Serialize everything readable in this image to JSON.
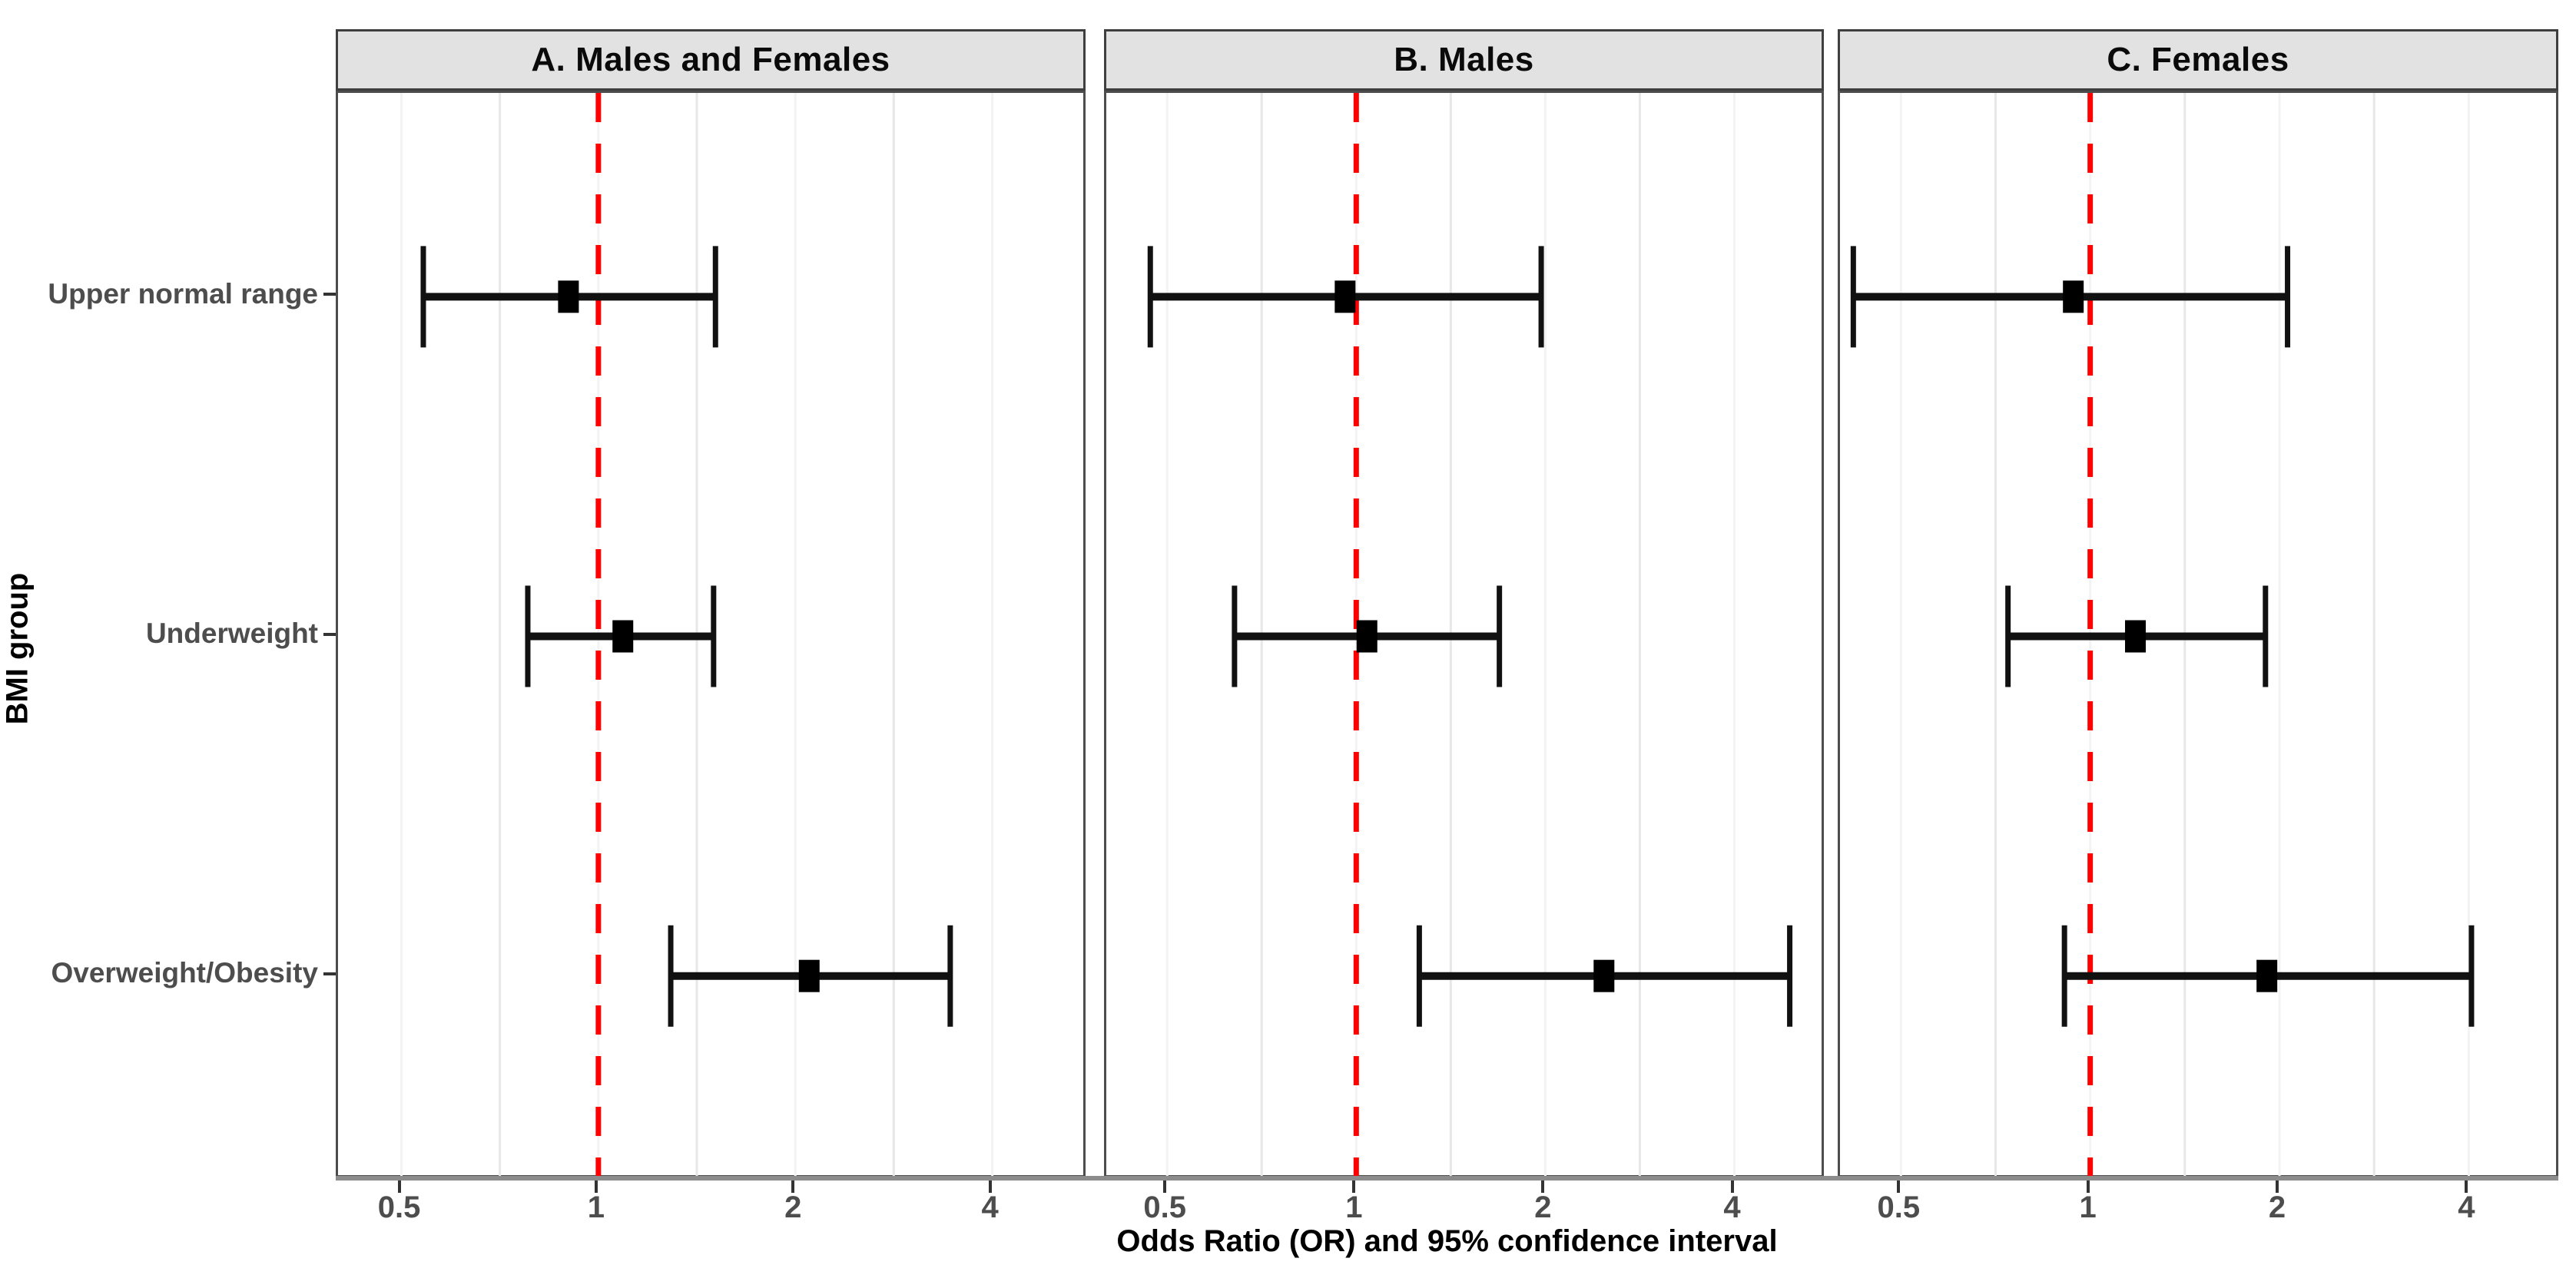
{
  "chart_data": {
    "type": "scatter",
    "variant": "forest-plot",
    "title": "",
    "xlabel": "Odds Ratio (OR) and 95% confidence interval",
    "ylabel": "BMI group",
    "x_scale": "log2",
    "x_ticks": [
      0.5,
      1,
      2,
      4
    ],
    "x_tick_labels": [
      "0.5",
      "1",
      "2",
      "4"
    ],
    "x_minor_gridlines": [
      0.707,
      1.414,
      2.828
    ],
    "xlim": [
      0.4,
      5.6
    ],
    "reference_line_x": 1,
    "grid": "on",
    "legend": "none",
    "categories": [
      "Upper normal range",
      "Underweight",
      "Overweight/Obesity"
    ],
    "panels": [
      {
        "key": "A",
        "title": "A. Males and Females",
        "points": [
          {
            "group": "Upper normal range",
            "or": 0.9,
            "ci_low": 0.54,
            "ci_high": 1.51
          },
          {
            "group": "Underweight",
            "or": 1.09,
            "ci_low": 0.78,
            "ci_high": 1.5
          },
          {
            "group": "Overweight/Obesity",
            "or": 2.1,
            "ci_low": 1.29,
            "ci_high": 3.45
          }
        ]
      },
      {
        "key": "B",
        "title": "B. Males",
        "points": [
          {
            "group": "Upper normal range",
            "or": 0.96,
            "ci_low": 0.47,
            "ci_high": 1.97
          },
          {
            "group": "Underweight",
            "or": 1.04,
            "ci_low": 0.64,
            "ci_high": 1.69
          },
          {
            "group": "Overweight/Obesity",
            "or": 2.48,
            "ci_low": 1.26,
            "ci_high": 4.9
          }
        ]
      },
      {
        "key": "C",
        "title": "C. Females",
        "points": [
          {
            "group": "Upper normal range",
            "or": 0.94,
            "ci_low": 0.42,
            "ci_high": 2.06
          },
          {
            "group": "Underweight",
            "or": 1.18,
            "ci_low": 0.74,
            "ci_high": 1.9
          },
          {
            "group": "Overweight/Obesity",
            "or": 1.91,
            "ci_low": 0.91,
            "ci_high": 4.04
          }
        ]
      }
    ],
    "colors": {
      "reference_line": "#FF0000",
      "error_bar": "#111111",
      "marker": "#000000",
      "header_bg": "#E2E2E2",
      "panel_border": "#4D4D4D",
      "grid_major": "#F3F3F3",
      "grid_minor": "#E7E7E7",
      "axis_text": "#4D4D4D"
    }
  }
}
